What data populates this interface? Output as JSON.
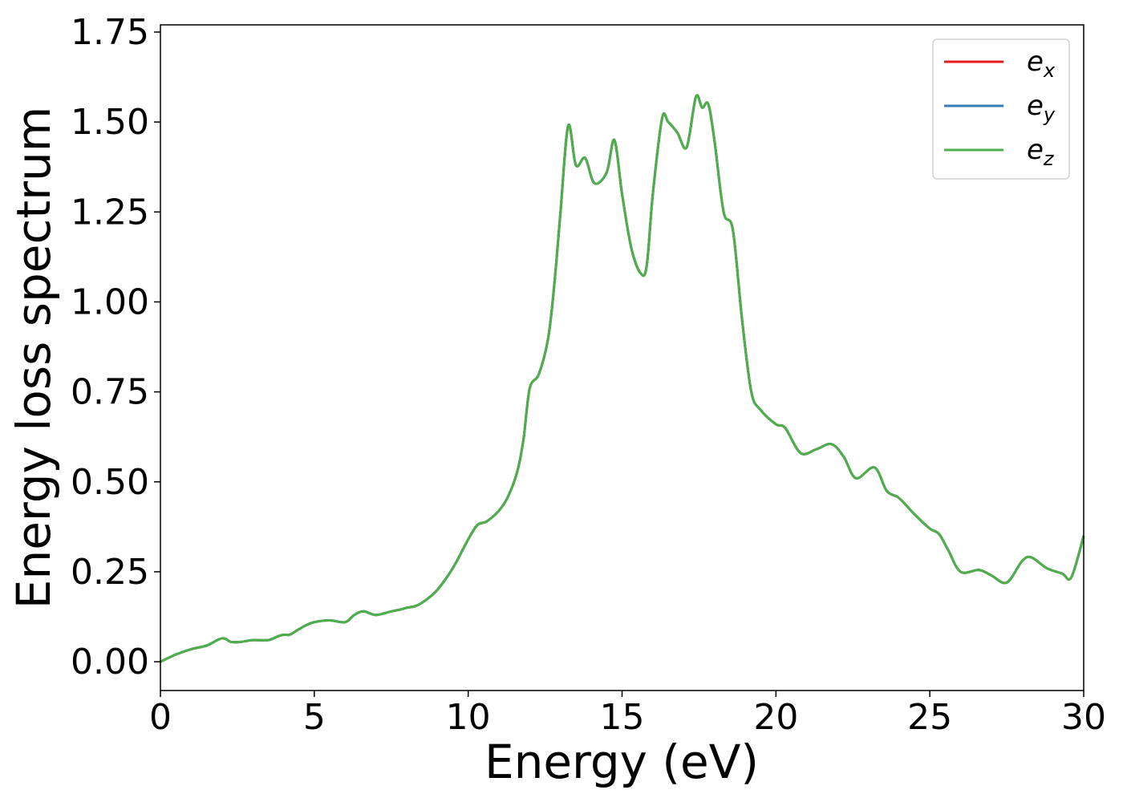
{
  "chart_data": {
    "type": "line",
    "xlabel": "Energy (eV)",
    "ylabel": "Energy loss spectrum",
    "xlim": [
      0,
      30
    ],
    "ylim": [
      -0.08,
      1.77
    ],
    "xticks": [
      "0",
      "5",
      "10",
      "15",
      "20",
      "25",
      "30"
    ],
    "yticks": [
      "0.00",
      "0.25",
      "0.50",
      "0.75",
      "1.00",
      "1.25",
      "1.50",
      "1.75"
    ],
    "grid": false,
    "legend_position": "top-right",
    "x": [
      0,
      0.5,
      1.0,
      1.5,
      2.0,
      2.3,
      2.6,
      3.0,
      3.5,
      3.8,
      4.0,
      4.2,
      4.4,
      4.7,
      5.0,
      5.5,
      6.0,
      6.3,
      6.6,
      7.0,
      7.5,
      7.8,
      8.0,
      8.3,
      8.6,
      9.0,
      9.5,
      10.0,
      10.3,
      10.6,
      11.0,
      11.3,
      11.6,
      11.8,
      12.0,
      12.3,
      12.6,
      12.8,
      13.0,
      13.25,
      13.5,
      13.8,
      14.1,
      14.5,
      14.75,
      15.0,
      15.3,
      15.6,
      15.8,
      16.0,
      16.3,
      16.5,
      16.8,
      17.1,
      17.4,
      17.6,
      17.8,
      18.0,
      18.3,
      18.6,
      18.9,
      19.2,
      19.5,
      20.0,
      20.3,
      20.8,
      21.3,
      21.8,
      22.2,
      22.6,
      23.2,
      23.6,
      24.0,
      24.5,
      25.0,
      25.3,
      25.6,
      26.0,
      26.6,
      27.0,
      27.5,
      28.0,
      28.3,
      28.8,
      29.3,
      29.6,
      30.0
    ],
    "series": [
      {
        "name": "e_x",
        "color": "#e41a1c",
        "values": [
          0.0,
          0.02,
          0.035,
          0.045,
          0.065,
          0.055,
          0.055,
          0.06,
          0.06,
          0.07,
          0.075,
          0.075,
          0.085,
          0.1,
          0.11,
          0.115,
          0.11,
          0.13,
          0.14,
          0.13,
          0.14,
          0.145,
          0.15,
          0.155,
          0.17,
          0.2,
          0.26,
          0.34,
          0.38,
          0.39,
          0.42,
          0.46,
          0.53,
          0.62,
          0.76,
          0.8,
          0.9,
          1.05,
          1.25,
          1.49,
          1.38,
          1.4,
          1.33,
          1.36,
          1.45,
          1.3,
          1.15,
          1.08,
          1.1,
          1.3,
          1.51,
          1.5,
          1.47,
          1.43,
          1.57,
          1.54,
          1.55,
          1.45,
          1.25,
          1.2,
          0.95,
          0.75,
          0.7,
          0.66,
          0.65,
          0.58,
          0.59,
          0.605,
          0.57,
          0.51,
          0.54,
          0.475,
          0.455,
          0.41,
          0.37,
          0.355,
          0.31,
          0.25,
          0.255,
          0.24,
          0.22,
          0.28,
          0.29,
          0.26,
          0.245,
          0.235,
          0.35
        ]
      },
      {
        "name": "e_y",
        "color": "#377eb8",
        "values": [
          0.0,
          0.02,
          0.035,
          0.045,
          0.065,
          0.055,
          0.055,
          0.06,
          0.06,
          0.07,
          0.075,
          0.075,
          0.085,
          0.1,
          0.11,
          0.115,
          0.11,
          0.13,
          0.14,
          0.13,
          0.14,
          0.145,
          0.15,
          0.155,
          0.17,
          0.2,
          0.26,
          0.34,
          0.38,
          0.39,
          0.42,
          0.46,
          0.53,
          0.62,
          0.76,
          0.8,
          0.9,
          1.05,
          1.25,
          1.49,
          1.38,
          1.4,
          1.33,
          1.36,
          1.45,
          1.3,
          1.15,
          1.08,
          1.1,
          1.3,
          1.51,
          1.5,
          1.47,
          1.43,
          1.57,
          1.54,
          1.55,
          1.45,
          1.25,
          1.2,
          0.95,
          0.75,
          0.7,
          0.66,
          0.65,
          0.58,
          0.59,
          0.605,
          0.57,
          0.51,
          0.54,
          0.475,
          0.455,
          0.41,
          0.37,
          0.355,
          0.31,
          0.25,
          0.255,
          0.24,
          0.22,
          0.28,
          0.29,
          0.26,
          0.245,
          0.235,
          0.35
        ]
      },
      {
        "name": "e_z",
        "color": "#4daf4a",
        "values": [
          0.0,
          0.02,
          0.035,
          0.045,
          0.065,
          0.055,
          0.055,
          0.06,
          0.06,
          0.07,
          0.075,
          0.075,
          0.085,
          0.1,
          0.11,
          0.115,
          0.11,
          0.13,
          0.14,
          0.13,
          0.14,
          0.145,
          0.15,
          0.155,
          0.17,
          0.2,
          0.26,
          0.34,
          0.38,
          0.39,
          0.42,
          0.46,
          0.53,
          0.62,
          0.76,
          0.8,
          0.9,
          1.05,
          1.25,
          1.49,
          1.38,
          1.4,
          1.33,
          1.36,
          1.45,
          1.3,
          1.15,
          1.08,
          1.1,
          1.3,
          1.51,
          1.5,
          1.47,
          1.43,
          1.57,
          1.54,
          1.55,
          1.45,
          1.25,
          1.2,
          0.95,
          0.75,
          0.7,
          0.66,
          0.65,
          0.58,
          0.59,
          0.605,
          0.57,
          0.51,
          0.54,
          0.475,
          0.455,
          0.41,
          0.37,
          0.355,
          0.31,
          0.25,
          0.255,
          0.24,
          0.22,
          0.28,
          0.29,
          0.26,
          0.245,
          0.235,
          0.35
        ]
      }
    ],
    "legend": [
      {
        "base": "e",
        "sub": "x",
        "color": "#e41a1c"
      },
      {
        "base": "e",
        "sub": "y",
        "color": "#377eb8"
      },
      {
        "base": "e",
        "sub": "z",
        "color": "#4daf4a"
      }
    ]
  }
}
